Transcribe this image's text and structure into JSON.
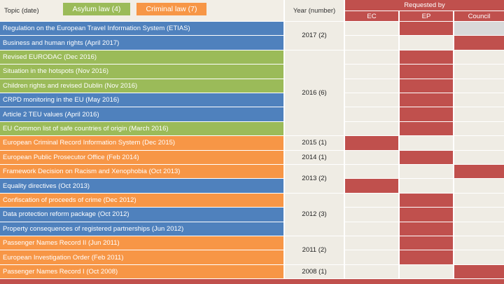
{
  "header": {
    "topic_label": "Topic (date)",
    "legend": [
      {
        "label": "Asylum law (4)",
        "color": "#9bbb59"
      },
      {
        "label": "Criminal law (7)",
        "color": "#f79646"
      }
    ],
    "year_label": "Year (number)",
    "requested_by_label": "Requested by",
    "institutions": [
      "EC",
      "EP",
      "Council"
    ]
  },
  "colors": {
    "asylum": "#9bbb59",
    "criminal": "#f79646",
    "other": "#4f81bd",
    "requested": "#c0504d",
    "empty": "#efece4",
    "council_gray": "#d9d9d9"
  },
  "rows": [
    {
      "topic": "Regulation on the European Travel Information System (ETIAS)",
      "category": "other",
      "requested": [
        false,
        true,
        "gray"
      ]
    },
    {
      "topic": "Business and human rights (April 2017)",
      "category": "other",
      "requested": [
        false,
        false,
        true
      ]
    },
    {
      "topic": "Revised EURODAC (Dec 2016)",
      "category": "asylum",
      "requested": [
        false,
        true,
        false
      ]
    },
    {
      "topic": "Situation in the hotspots  (Nov 2016)",
      "category": "asylum",
      "requested": [
        false,
        true,
        false
      ]
    },
    {
      "topic": "Children rights and revised Dublin (Nov 2016)",
      "category": "asylum",
      "requested": [
        false,
        true,
        false
      ]
    },
    {
      "topic": "CRPD monitoring in the EU (May 2016)",
      "category": "other",
      "requested": [
        false,
        true,
        false
      ]
    },
    {
      "topic": "Article 2 TEU values (April 2016)",
      "category": "other",
      "requested": [
        false,
        true,
        false
      ]
    },
    {
      "topic": "EU Common list of safe countries of origin (March 2016)",
      "category": "asylum",
      "requested": [
        false,
        true,
        false
      ]
    },
    {
      "topic": "European Criminal Record Information System (Dec 2015)",
      "category": "criminal",
      "requested": [
        true,
        false,
        false
      ]
    },
    {
      "topic": "European Public Prosecutor Office (Feb 2014)",
      "category": "criminal",
      "requested": [
        false,
        true,
        false
      ]
    },
    {
      "topic": "Framework Decision on Racism and Xenophobia (Oct 2013)",
      "category": "criminal",
      "requested": [
        false,
        false,
        true
      ]
    },
    {
      "topic": "Equality directives (Oct 2013)",
      "category": "other",
      "requested": [
        true,
        false,
        false
      ]
    },
    {
      "topic": "Confiscation of proceeds of crime (Dec 2012)",
      "category": "criminal",
      "requested": [
        false,
        true,
        false
      ]
    },
    {
      "topic": "Data protection reform package (Oct 2012)",
      "category": "other",
      "requested": [
        false,
        true,
        false
      ]
    },
    {
      "topic": "Property consequences of registered partnerships (Jun 2012)",
      "category": "other",
      "requested": [
        false,
        true,
        false
      ]
    },
    {
      "topic": "Passenger Names Record II (Jun 2011)",
      "category": "criminal",
      "requested": [
        false,
        true,
        false
      ]
    },
    {
      "topic": "European Investigation Order (Feb 2011)",
      "category": "criminal",
      "requested": [
        false,
        true,
        false
      ]
    },
    {
      "topic": "Passenger Names Record I (Oct 2008)",
      "category": "criminal",
      "requested": [
        false,
        false,
        true
      ]
    }
  ],
  "year_groups": [
    {
      "label": "2017 (2)",
      "row_start": 0,
      "row_count": 2
    },
    {
      "label": "2016 (6)",
      "row_start": 2,
      "row_count": 6
    },
    {
      "label": "2015 (1)",
      "row_start": 8,
      "row_count": 1
    },
    {
      "label": "2014 (1)",
      "row_start": 9,
      "row_count": 1
    },
    {
      "label": "2013 (2)",
      "row_start": 10,
      "row_count": 2
    },
    {
      "label": "2012 (3)",
      "row_start": 12,
      "row_count": 3
    },
    {
      "label": "2011 (2)",
      "row_start": 15,
      "row_count": 2
    },
    {
      "label": "2008 (1)",
      "row_start": 17,
      "row_count": 1
    }
  ]
}
